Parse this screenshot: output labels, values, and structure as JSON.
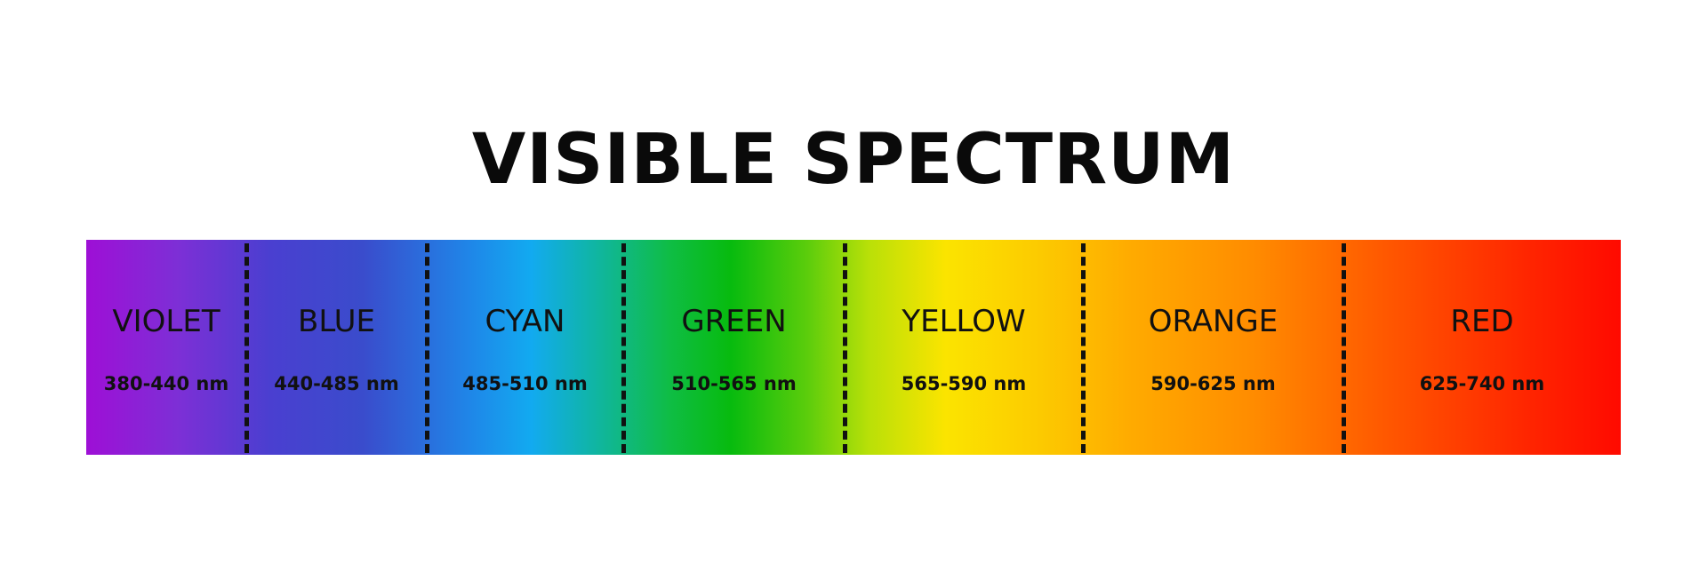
{
  "title": "VISIBLE SPECTRUM",
  "bands": [
    {
      "name": "VIOLET",
      "range": "380-440 nm",
      "color": "#9e0fd6"
    },
    {
      "name": "BLUE",
      "range": "440-485 nm",
      "color": "#3a4ccc"
    },
    {
      "name": "CYAN",
      "range": "485-510 nm",
      "color": "#12aaf0"
    },
    {
      "name": "GREEN",
      "range": "510-565 nm",
      "color": "#07bb0e"
    },
    {
      "name": "YELLOW",
      "range": "565-590 nm",
      "color": "#fbe400"
    },
    {
      "name": "ORANGE",
      "range": "590-625 nm",
      "color": "#ff8c00"
    },
    {
      "name": "RED",
      "range": "625-740 nm",
      "color": "#ff0a00"
    }
  ]
}
